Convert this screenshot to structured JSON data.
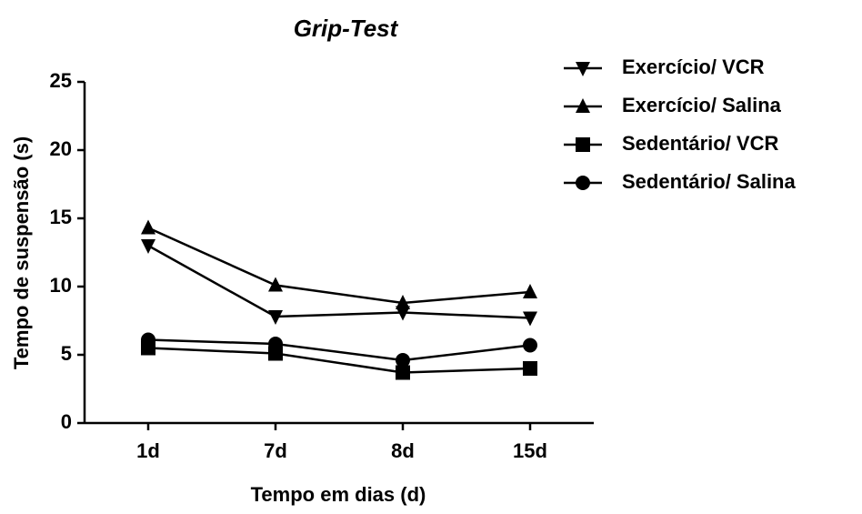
{
  "chart_data": {
    "type": "line",
    "title": "Grip-Test",
    "xlabel": "Tempo em dias (d)",
    "ylabel": "Tempo de suspensão (s)",
    "categories": [
      "1d",
      "7d",
      "8d",
      "15d"
    ],
    "series": [
      {
        "name": "Exercício/ VCR",
        "color": "#000000",
        "marker": "triangle-down",
        "values": [
          13,
          7.8,
          8.1,
          7.7
        ]
      },
      {
        "name": "Exercício/ Salina",
        "color": "#000000",
        "marker": "triangle-up",
        "values": [
          14.3,
          10.1,
          8.8,
          9.6
        ]
      },
      {
        "name": "Sedentário/ VCR",
        "color": "#000000",
        "marker": "square",
        "values": [
          5.5,
          5.1,
          3.7,
          4.0
        ]
      },
      {
        "name": "Sedentário/ Salina",
        "color": "#000000",
        "marker": "circle",
        "values": [
          6.1,
          5.8,
          4.6,
          5.7
        ]
      }
    ],
    "ylim": [
      0,
      25
    ],
    "yticks": [
      0,
      5,
      10,
      15,
      20,
      25
    ],
    "grid": false,
    "legend": "right"
  }
}
